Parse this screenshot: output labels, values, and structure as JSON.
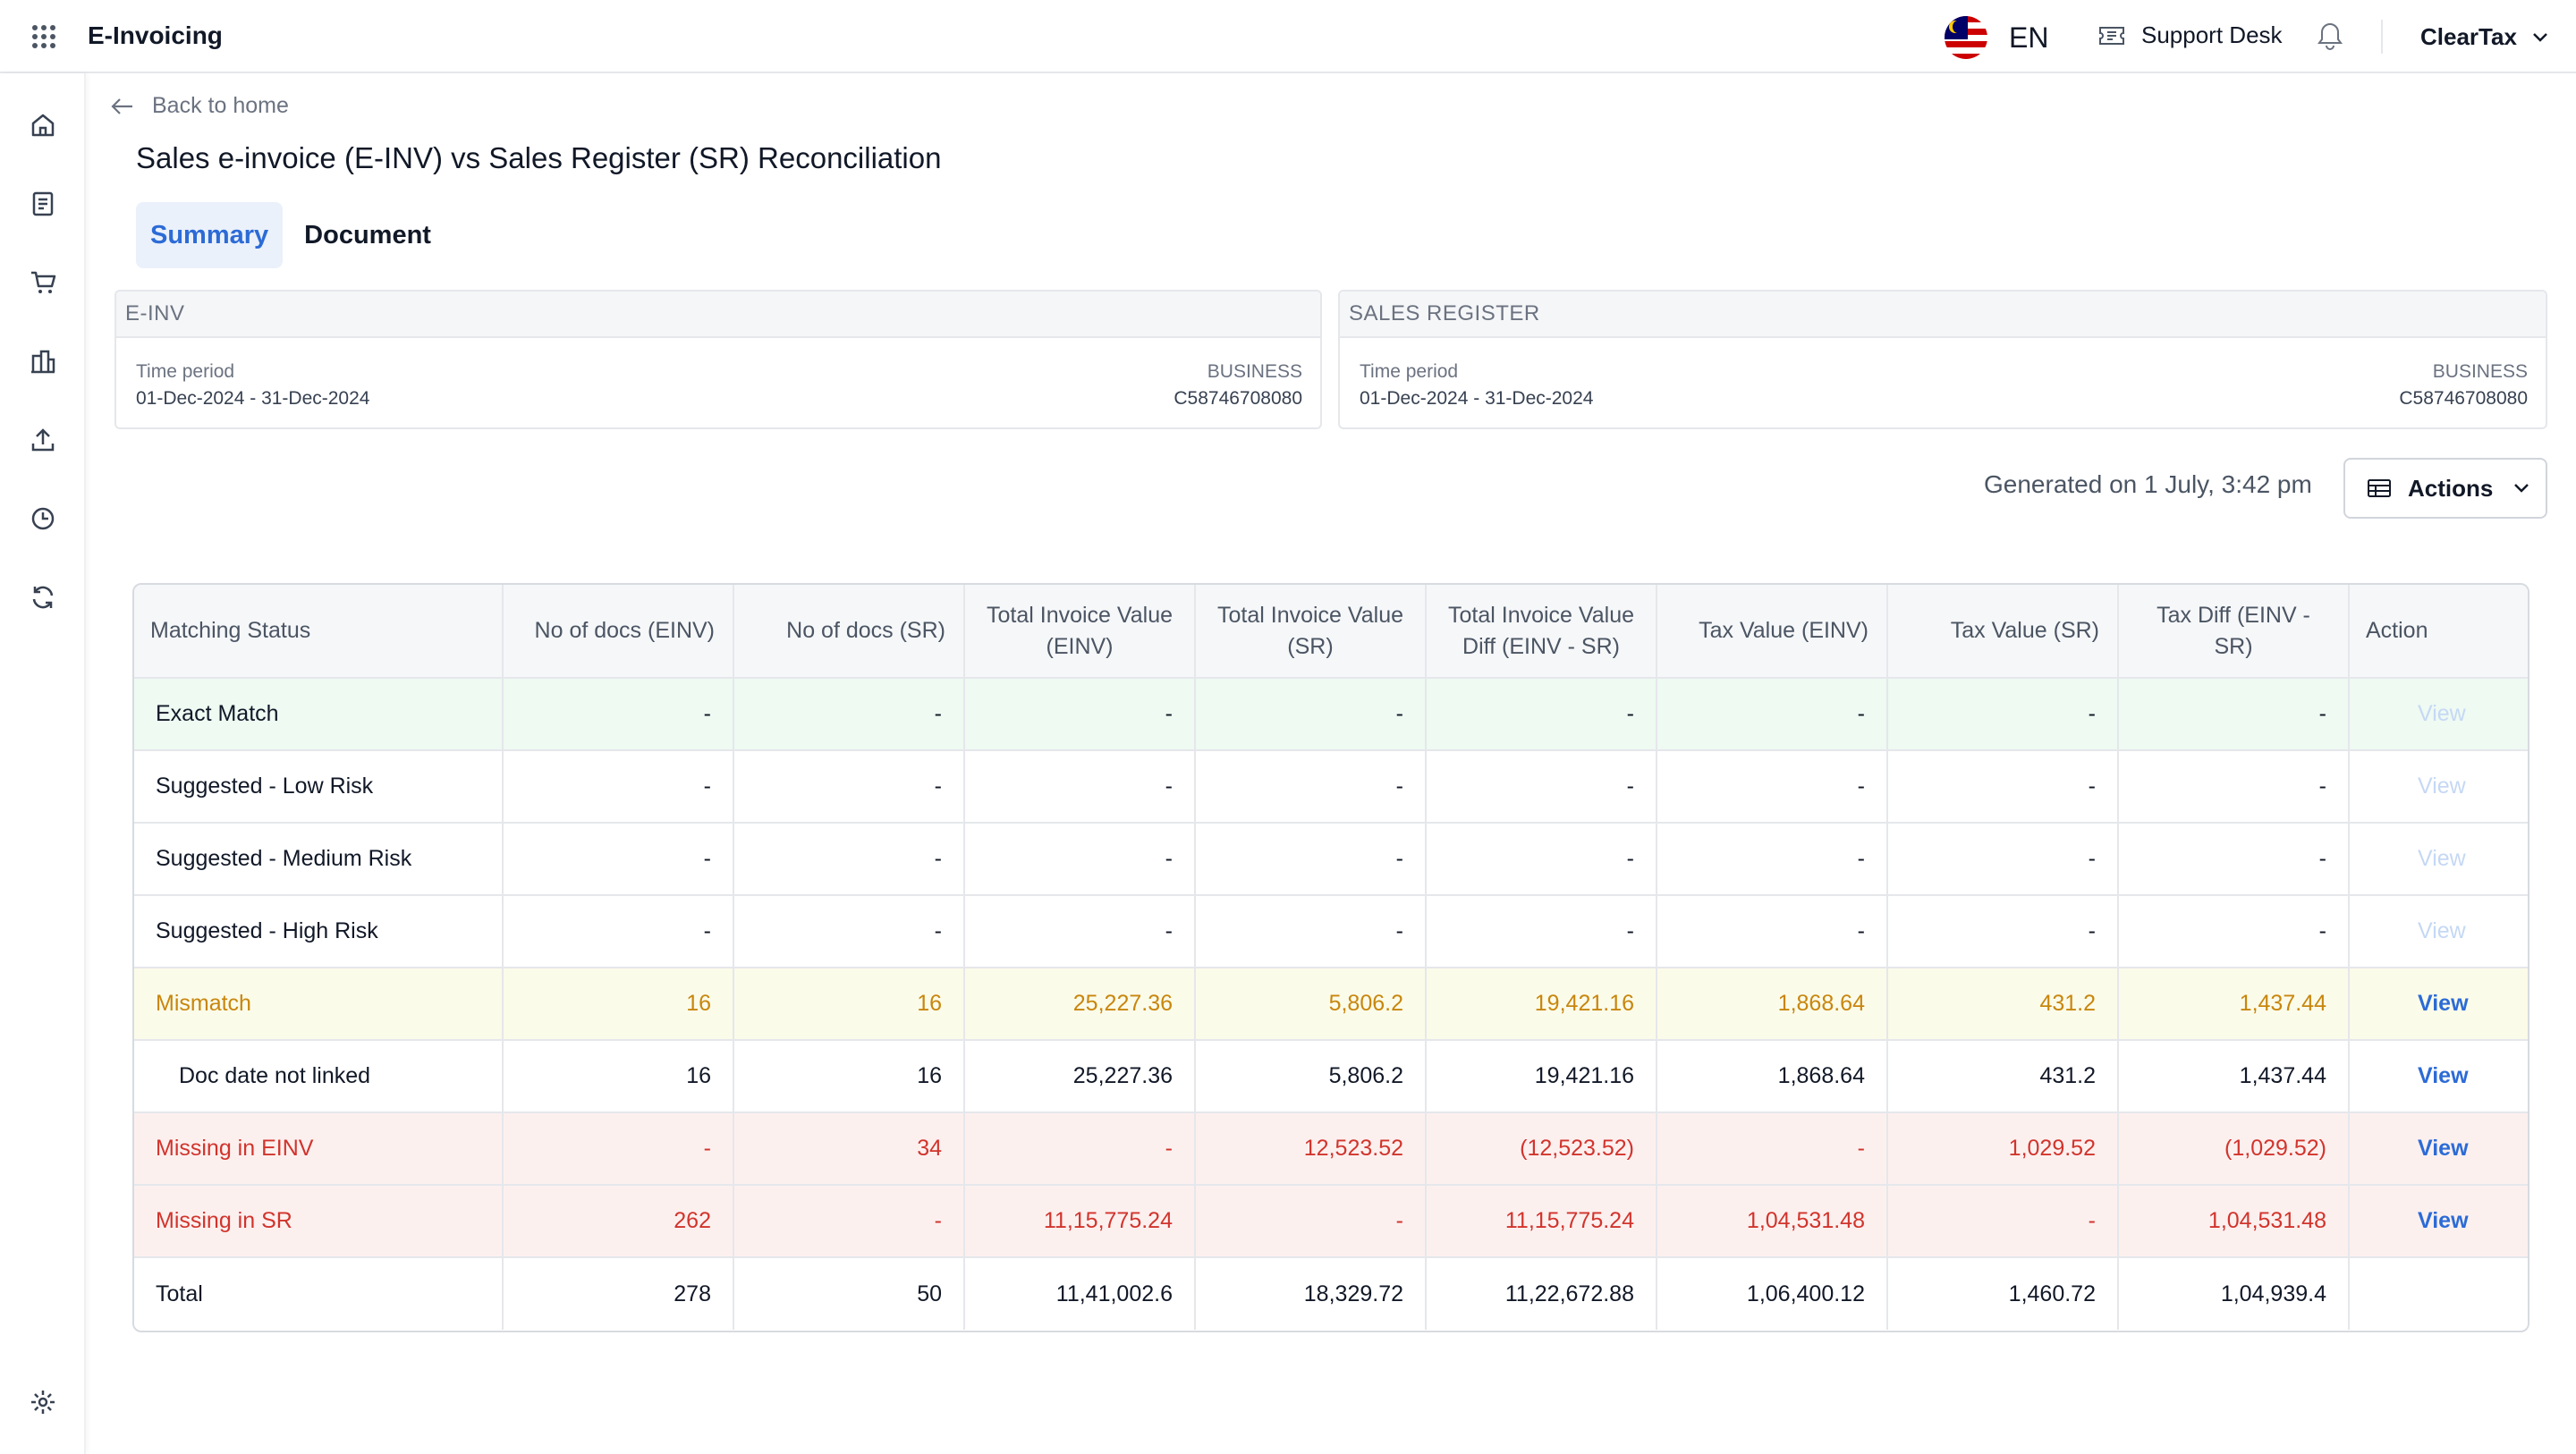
{
  "app": {
    "title": "E-Invoicing",
    "language": "EN",
    "support_label": "Support Desk",
    "account_name": "ClearTax"
  },
  "nav": {
    "back_label": "Back to home"
  },
  "page": {
    "title": "Sales e-invoice (E-INV) vs Sales Register (SR) Reconciliation"
  },
  "tabs": [
    {
      "label": "Summary",
      "active": true
    },
    {
      "label": "Document",
      "active": false
    }
  ],
  "cards": [
    {
      "header": "E-INV",
      "period_label": "Time period",
      "period_value": "01-Dec-2024 - 31-Dec-2024",
      "business_label": "BUSINESS",
      "business_value": "C58746708080"
    },
    {
      "header": "SALES REGISTER",
      "period_label": "Time period",
      "period_value": "01-Dec-2024 - 31-Dec-2024",
      "business_label": "BUSINESS",
      "business_value": "C58746708080"
    }
  ],
  "generated_text": "Generated on 1 July, 3:42 pm",
  "actions_label": "Actions",
  "table": {
    "columns": [
      "Matching Status",
      "No of docs (EINV)",
      "No of docs (SR)",
      "Total Invoice Value (EINV)",
      "Total Invoice Value (SR)",
      "Total Invoice Value Diff (EINV - SR)",
      "Tax Value (EINV)",
      "Tax Value (SR)",
      "Tax Diff (EINV - SR)",
      "Action"
    ],
    "rows": [
      {
        "status": "Exact Match",
        "values": [
          "-",
          "-",
          "-",
          "-",
          "-",
          "-",
          "-",
          "-"
        ],
        "action": "View",
        "enabled": false,
        "style": "exact",
        "indent": false
      },
      {
        "status": "Suggested - Low Risk",
        "values": [
          "-",
          "-",
          "-",
          "-",
          "-",
          "-",
          "-",
          "-"
        ],
        "action": "View",
        "enabled": false,
        "style": "plain",
        "indent": false
      },
      {
        "status": "Suggested - Medium Risk",
        "values": [
          "-",
          "-",
          "-",
          "-",
          "-",
          "-",
          "-",
          "-"
        ],
        "action": "View",
        "enabled": false,
        "style": "plain",
        "indent": false
      },
      {
        "status": "Suggested - High Risk",
        "values": [
          "-",
          "-",
          "-",
          "-",
          "-",
          "-",
          "-",
          "-"
        ],
        "action": "View",
        "enabled": false,
        "style": "plain",
        "indent": false
      },
      {
        "status": "Mismatch",
        "values": [
          "16",
          "16",
          "25,227.36",
          "5,806.2",
          "19,421.16",
          "1,868.64",
          "431.2",
          "1,437.44"
        ],
        "action": "View",
        "enabled": true,
        "style": "mismatch",
        "indent": false
      },
      {
        "status": "Doc date not linked",
        "values": [
          "16",
          "16",
          "25,227.36",
          "5,806.2",
          "19,421.16",
          "1,868.64",
          "431.2",
          "1,437.44"
        ],
        "action": "View",
        "enabled": true,
        "style": "plain",
        "indent": true
      },
      {
        "status": "Missing in EINV",
        "values": [
          "-",
          "34",
          "-",
          "12,523.52",
          "(12,523.52)",
          "-",
          "1,029.52",
          "(1,029.52)"
        ],
        "action": "View",
        "enabled": true,
        "style": "missing",
        "indent": false
      },
      {
        "status": "Missing in SR",
        "values": [
          "262",
          "-",
          "11,15,775.24",
          "-",
          "11,15,775.24",
          "1,04,531.48",
          "-",
          "1,04,531.48"
        ],
        "action": "View",
        "enabled": true,
        "style": "missing",
        "indent": false
      },
      {
        "status": "Total",
        "values": [
          "278",
          "50",
          "11,41,002.6",
          "18,329.72",
          "11,22,672.88",
          "1,06,400.12",
          "1,460.72",
          "1,04,939.4"
        ],
        "action": "",
        "enabled": false,
        "style": "plain",
        "indent": false
      }
    ]
  },
  "colors": {
    "accent": "#2c6bd6",
    "exact_bg": "#eefaf2",
    "mismatch_bg": "#fbfbe9",
    "mismatch_text": "#c8860d",
    "missing_bg": "#fcf0ef",
    "missing_text": "#d1342c"
  },
  "icons": [
    "apps-grid-icon",
    "malaysia-flag-icon",
    "ticket-icon",
    "bell-icon",
    "chevron-down-icon",
    "home-icon",
    "document-icon",
    "cart-icon",
    "buildings-icon",
    "upload-icon",
    "clock-icon",
    "refresh-icon",
    "settings-icon",
    "arrow-left-icon",
    "table-icon"
  ]
}
